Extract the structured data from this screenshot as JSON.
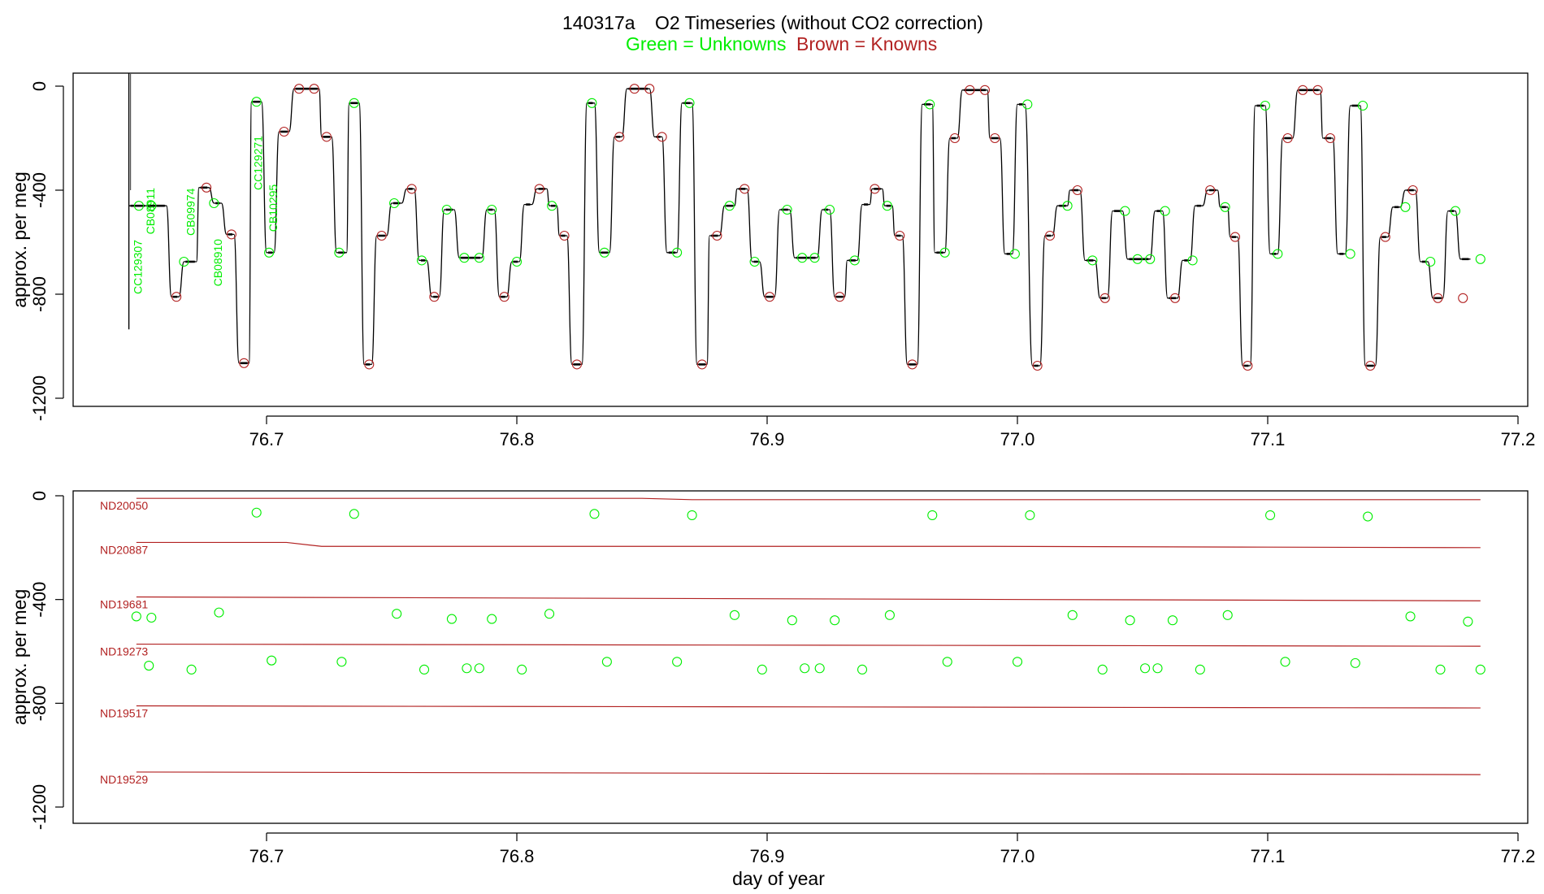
{
  "colors": {
    "unknown": "#00ee00",
    "known": "#b22222",
    "trace": "#000000",
    "axis": "#000000"
  },
  "title": {
    "id": "140317a",
    "text": "O2 Timeseries (without CO2 correction)"
  },
  "legend": {
    "unknowns": "Green = Unknowns",
    "knowns": "Brown = Knowns"
  },
  "xlabel": "day of year",
  "chart_data": [
    {
      "type": "line",
      "panel": "top",
      "ylabel": "approx. per meg",
      "xlim": [
        76.62,
        77.21
      ],
      "ylim": [
        -1250,
        50
      ],
      "xticks": [
        "76.7",
        "76.8",
        "76.9",
        "77.0",
        "77.1",
        "77.2"
      ],
      "yticks": [
        "0",
        "-400",
        "-800",
        "-1200"
      ],
      "trace_plateaus": [
        {
          "x0": 76.645,
          "x1": 76.652,
          "y": -460
        },
        {
          "x0": 76.652,
          "x1": 76.66,
          "y": -460
        },
        {
          "x0": 76.662,
          "x1": 76.665,
          "y": -810
        },
        {
          "x0": 76.667,
          "x1": 76.672,
          "y": -675
        },
        {
          "x0": 76.673,
          "x1": 76.677,
          "y": -390
        },
        {
          "x0": 76.679,
          "x1": 76.682,
          "y": -450
        },
        {
          "x0": 76.684,
          "x1": 76.687,
          "y": -570
        },
        {
          "x0": 76.689,
          "x1": 76.693,
          "y": -1065
        },
        {
          "x0": 76.694,
          "x1": 76.698,
          "y": -60
        },
        {
          "x0": 76.7,
          "x1": 76.703,
          "y": -640
        },
        {
          "x0": 76.705,
          "x1": 76.709,
          "y": -175
        },
        {
          "x0": 76.711,
          "x1": 76.721,
          "y": -10
        },
        {
          "x0": 76.722,
          "x1": 76.726,
          "y": -195
        },
        {
          "x0": 76.728,
          "x1": 76.732,
          "y": -640
        },
        {
          "x0": 76.733,
          "x1": 76.737,
          "y": -65
        },
        {
          "x0": 76.739,
          "x1": 76.742,
          "y": -1070
        },
        {
          "x0": 76.744,
          "x1": 76.748,
          "y": -575
        },
        {
          "x0": 76.75,
          "x1": 76.754,
          "y": -450
        },
        {
          "x0": 76.756,
          "x1": 76.759,
          "y": -395
        },
        {
          "x0": 76.761,
          "x1": 76.764,
          "y": -670
        },
        {
          "x0": 76.766,
          "x1": 76.769,
          "y": -810
        },
        {
          "x0": 76.771,
          "x1": 76.775,
          "y": -475
        },
        {
          "x0": 76.777,
          "x1": 76.786,
          "y": -660
        },
        {
          "x0": 76.788,
          "x1": 76.791,
          "y": -475
        },
        {
          "x0": 76.793,
          "x1": 76.796,
          "y": -810
        },
        {
          "x0": 76.798,
          "x1": 76.801,
          "y": -675
        },
        {
          "x0": 76.803,
          "x1": 76.806,
          "y": -455
        },
        {
          "x0": 76.808,
          "x1": 76.812,
          "y": -395
        },
        {
          "x0": 76.813,
          "x1": 76.816,
          "y": -460
        },
        {
          "x0": 76.817,
          "x1": 76.82,
          "y": -575
        },
        {
          "x0": 76.822,
          "x1": 76.826,
          "y": -1070
        },
        {
          "x0": 76.828,
          "x1": 76.831,
          "y": -65
        },
        {
          "x0": 76.833,
          "x1": 76.837,
          "y": -640
        },
        {
          "x0": 76.839,
          "x1": 76.842,
          "y": -195
        },
        {
          "x0": 76.844,
          "x1": 76.853,
          "y": -10
        },
        {
          "x0": 76.855,
          "x1": 76.858,
          "y": -195
        },
        {
          "x0": 76.86,
          "x1": 76.864,
          "y": -640
        },
        {
          "x0": 76.866,
          "x1": 76.87,
          "y": -65
        },
        {
          "x0": 76.872,
          "x1": 76.876,
          "y": -1070
        },
        {
          "x0": 76.877,
          "x1": 76.881,
          "y": -575
        },
        {
          "x0": 76.883,
          "x1": 76.887,
          "y": -460
        },
        {
          "x0": 76.888,
          "x1": 76.892,
          "y": -395
        },
        {
          "x0": 76.894,
          "x1": 76.897,
          "y": -675
        },
        {
          "x0": 76.899,
          "x1": 76.903,
          "y": -810
        },
        {
          "x0": 76.905,
          "x1": 76.909,
          "y": -475
        },
        {
          "x0": 76.911,
          "x1": 76.92,
          "y": -660
        },
        {
          "x0": 76.922,
          "x1": 76.925,
          "y": -475
        },
        {
          "x0": 76.927,
          "x1": 76.931,
          "y": -810
        },
        {
          "x0": 76.932,
          "x1": 76.936,
          "y": -670
        },
        {
          "x0": 76.938,
          "x1": 76.941,
          "y": -455
        },
        {
          "x0": 76.942,
          "x1": 76.946,
          "y": -395
        },
        {
          "x0": 76.947,
          "x1": 76.95,
          "y": -460
        },
        {
          "x0": 76.951,
          "x1": 76.954,
          "y": -575
        },
        {
          "x0": 76.956,
          "x1": 76.96,
          "y": -1070
        },
        {
          "x0": 76.962,
          "x1": 76.966,
          "y": -70
        },
        {
          "x0": 76.967,
          "x1": 76.971,
          "y": -640
        },
        {
          "x0": 76.973,
          "x1": 76.976,
          "y": -200
        },
        {
          "x0": 76.978,
          "x1": 76.988,
          "y": -15
        },
        {
          "x0": 76.989,
          "x1": 76.993,
          "y": -200
        },
        {
          "x0": 76.995,
          "x1": 76.998,
          "y": -645
        },
        {
          "x0": 77.0,
          "x1": 77.003,
          "y": -70
        },
        {
          "x0": 77.006,
          "x1": 77.009,
          "y": -1075
        },
        {
          "x0": 77.011,
          "x1": 77.014,
          "y": -575
        },
        {
          "x0": 77.016,
          "x1": 77.02,
          "y": -460
        },
        {
          "x0": 77.021,
          "x1": 77.025,
          "y": -400
        },
        {
          "x0": 77.027,
          "x1": 77.031,
          "y": -670
        },
        {
          "x0": 77.033,
          "x1": 77.036,
          "y": -815
        },
        {
          "x0": 77.038,
          "x1": 77.042,
          "y": -480
        },
        {
          "x0": 77.044,
          "x1": 77.053,
          "y": -665
        },
        {
          "x0": 77.055,
          "x1": 77.058,
          "y": -480
        },
        {
          "x0": 77.06,
          "x1": 77.064,
          "y": -815
        },
        {
          "x0": 77.066,
          "x1": 77.069,
          "y": -670
        },
        {
          "x0": 77.071,
          "x1": 77.074,
          "y": -460
        },
        {
          "x0": 77.076,
          "x1": 77.08,
          "y": -400
        },
        {
          "x0": 77.081,
          "x1": 77.084,
          "y": -465
        },
        {
          "x0": 77.085,
          "x1": 77.088,
          "y": -580
        },
        {
          "x0": 77.09,
          "x1": 77.093,
          "y": -1075
        },
        {
          "x0": 77.095,
          "x1": 77.099,
          "y": -75
        },
        {
          "x0": 77.101,
          "x1": 77.104,
          "y": -645
        },
        {
          "x0": 77.106,
          "x1": 77.11,
          "y": -200
        },
        {
          "x0": 77.112,
          "x1": 77.121,
          "y": -15
        },
        {
          "x0": 77.122,
          "x1": 77.126,
          "y": -200
        },
        {
          "x0": 77.128,
          "x1": 77.131,
          "y": -645
        },
        {
          "x0": 77.133,
          "x1": 77.137,
          "y": -75
        },
        {
          "x0": 77.139,
          "x1": 77.143,
          "y": -1075
        },
        {
          "x0": 77.145,
          "x1": 77.148,
          "y": -580
        },
        {
          "x0": 77.15,
          "x1": 77.153,
          "y": -465
        },
        {
          "x0": 77.155,
          "x1": 77.159,
          "y": -400
        },
        {
          "x0": 77.161,
          "x1": 77.164,
          "y": -675
        },
        {
          "x0": 77.166,
          "x1": 77.17,
          "y": -815
        },
        {
          "x0": 77.172,
          "x1": 77.175,
          "y": -480
        },
        {
          "x0": 77.177,
          "x1": 77.181,
          "y": -665
        }
      ],
      "spike": {
        "x": 76.645,
        "ymin": -935,
        "ymax": 50
      },
      "unknown_points": [
        [
          76.649,
          -460
        ],
        [
          76.654,
          -460
        ],
        [
          76.667,
          -675
        ],
        [
          76.679,
          -450
        ],
        [
          76.696,
          -60
        ],
        [
          76.701,
          -640
        ],
        [
          76.729,
          -640
        ],
        [
          76.735,
          -65
        ],
        [
          76.751,
          -450
        ],
        [
          76.762,
          -670
        ],
        [
          76.772,
          -475
        ],
        [
          76.779,
          -660
        ],
        [
          76.785,
          -660
        ],
        [
          76.79,
          -475
        ],
        [
          76.8,
          -675
        ],
        [
          76.814,
          -460
        ],
        [
          76.83,
          -65
        ],
        [
          76.835,
          -640
        ],
        [
          76.864,
          -640
        ],
        [
          76.869,
          -65
        ],
        [
          76.885,
          -460
        ],
        [
          76.895,
          -675
        ],
        [
          76.908,
          -475
        ],
        [
          76.914,
          -660
        ],
        [
          76.919,
          -660
        ],
        [
          76.925,
          -475
        ],
        [
          76.935,
          -670
        ],
        [
          76.948,
          -460
        ],
        [
          76.965,
          -70
        ],
        [
          76.971,
          -640
        ],
        [
          76.999,
          -645
        ],
        [
          77.004,
          -70
        ],
        [
          77.02,
          -460
        ],
        [
          77.03,
          -670
        ],
        [
          77.043,
          -480
        ],
        [
          77.048,
          -665
        ],
        [
          77.053,
          -665
        ],
        [
          77.059,
          -480
        ],
        [
          77.07,
          -670
        ],
        [
          77.083,
          -465
        ],
        [
          77.099,
          -75
        ],
        [
          77.104,
          -645
        ],
        [
          77.133,
          -645
        ],
        [
          77.138,
          -75
        ],
        [
          77.155,
          -465
        ],
        [
          77.165,
          -675
        ],
        [
          77.175,
          -480
        ],
        [
          77.185,
          -665
        ]
      ],
      "known_points": [
        [
          76.664,
          -810
        ],
        [
          76.676,
          -390
        ],
        [
          76.686,
          -570
        ],
        [
          76.691,
          -1065
        ],
        [
          76.707,
          -175
        ],
        [
          76.713,
          -10
        ],
        [
          76.719,
          -10
        ],
        [
          76.724,
          -195
        ],
        [
          76.741,
          -1070
        ],
        [
          76.746,
          -575
        ],
        [
          76.758,
          -395
        ],
        [
          76.767,
          -810
        ],
        [
          76.795,
          -810
        ],
        [
          76.809,
          -395
        ],
        [
          76.819,
          -575
        ],
        [
          76.824,
          -1070
        ],
        [
          76.841,
          -195
        ],
        [
          76.847,
          -10
        ],
        [
          76.853,
          -10
        ],
        [
          76.858,
          -195
        ],
        [
          76.874,
          -1070
        ],
        [
          76.88,
          -575
        ],
        [
          76.891,
          -395
        ],
        [
          76.901,
          -810
        ],
        [
          76.929,
          -810
        ],
        [
          76.943,
          -395
        ],
        [
          76.953,
          -575
        ],
        [
          76.958,
          -1070
        ],
        [
          76.975,
          -200
        ],
        [
          76.981,
          -15
        ],
        [
          76.987,
          -15
        ],
        [
          76.991,
          -200
        ],
        [
          77.008,
          -1075
        ],
        [
          77.013,
          -575
        ],
        [
          77.024,
          -400
        ],
        [
          77.035,
          -815
        ],
        [
          77.063,
          -815
        ],
        [
          77.077,
          -400
        ],
        [
          77.087,
          -580
        ],
        [
          77.092,
          -1075
        ],
        [
          77.108,
          -200
        ],
        [
          77.114,
          -15
        ],
        [
          77.12,
          -15
        ],
        [
          77.125,
          -200
        ],
        [
          77.141,
          -1075
        ],
        [
          77.147,
          -580
        ],
        [
          77.158,
          -400
        ],
        [
          77.168,
          -815
        ],
        [
          77.178,
          -815
        ]
      ],
      "sample_labels": [
        {
          "text": "CC129307",
          "x": 76.649,
          "y": -800
        },
        {
          "text": "CB08911",
          "x": 76.654,
          "y": -570
        },
        {
          "text": "CB09974",
          "x": 76.67,
          "y": -575
        },
        {
          "text": "CB08910",
          "x": 76.681,
          "y": -770
        },
        {
          "text": "CC129271",
          "x": 76.697,
          "y": -400
        },
        {
          "text": "CB10295",
          "x": 76.703,
          "y": -560
        }
      ]
    },
    {
      "type": "line",
      "panel": "bottom",
      "ylabel": "approx. per meg",
      "xlabel": "day of year",
      "xlim": [
        76.62,
        77.21
      ],
      "ylim": [
        -1250,
        50
      ],
      "xticks": [
        "76.7",
        "76.8",
        "76.9",
        "77.0",
        "77.1",
        "77.2"
      ],
      "yticks": [
        "0",
        "-400",
        "-800",
        "-1200"
      ],
      "known_lines": [
        {
          "name": "ND20050",
          "x": [
            76.648,
            76.7,
            76.85,
            76.87,
            77.185
          ],
          "y": [
            -10,
            -10,
            -10,
            -15,
            -15
          ]
        },
        {
          "name": "ND20887",
          "x": [
            76.648,
            76.708,
            76.722,
            76.99,
            77.1,
            77.185
          ],
          "y": [
            -180,
            -180,
            -195,
            -195,
            -198,
            -200
          ]
        },
        {
          "name": "ND19681",
          "x": [
            76.648,
            77.185
          ],
          "y": [
            -390,
            -405
          ]
        },
        {
          "name": "ND19273",
          "x": [
            76.648,
            77.185
          ],
          "y": [
            -572,
            -580
          ]
        },
        {
          "name": "ND19517",
          "x": [
            76.648,
            77.185
          ],
          "y": [
            -810,
            -818
          ]
        },
        {
          "name": "ND19529",
          "x": [
            76.648,
            77.185
          ],
          "y": [
            -1065,
            -1075
          ]
        }
      ],
      "unknown_points": [
        [
          76.648,
          -465
        ],
        [
          76.654,
          -470
        ],
        [
          76.681,
          -450
        ],
        [
          76.696,
          -65
        ],
        [
          76.735,
          -70
        ],
        [
          76.752,
          -455
        ],
        [
          76.774,
          -475
        ],
        [
          76.79,
          -475
        ],
        [
          76.813,
          -455
        ],
        [
          76.831,
          -70
        ],
        [
          76.87,
          -75
        ],
        [
          76.887,
          -460
        ],
        [
          76.91,
          -480
        ],
        [
          76.927,
          -480
        ],
        [
          76.949,
          -460
        ],
        [
          76.966,
          -75
        ],
        [
          77.005,
          -75
        ],
        [
          77.022,
          -460
        ],
        [
          77.045,
          -480
        ],
        [
          77.062,
          -480
        ],
        [
          77.084,
          -460
        ],
        [
          77.101,
          -75
        ],
        [
          77.14,
          -80
        ],
        [
          77.157,
          -465
        ],
        [
          77.18,
          -485
        ],
        [
          76.653,
          -655
        ],
        [
          76.67,
          -670
        ],
        [
          76.702,
          -635
        ],
        [
          76.73,
          -640
        ],
        [
          76.763,
          -670
        ],
        [
          76.78,
          -665
        ],
        [
          76.785,
          -665
        ],
        [
          76.802,
          -670
        ],
        [
          76.836,
          -640
        ],
        [
          76.864,
          -640
        ],
        [
          76.898,
          -670
        ],
        [
          76.915,
          -665
        ],
        [
          76.921,
          -665
        ],
        [
          76.938,
          -670
        ],
        [
          76.972,
          -640
        ],
        [
          77.0,
          -640
        ],
        [
          77.034,
          -670
        ],
        [
          77.051,
          -665
        ],
        [
          77.056,
          -665
        ],
        [
          77.073,
          -670
        ],
        [
          77.107,
          -640
        ],
        [
          77.135,
          -645
        ],
        [
          77.169,
          -670
        ],
        [
          77.185,
          -670
        ]
      ]
    }
  ]
}
